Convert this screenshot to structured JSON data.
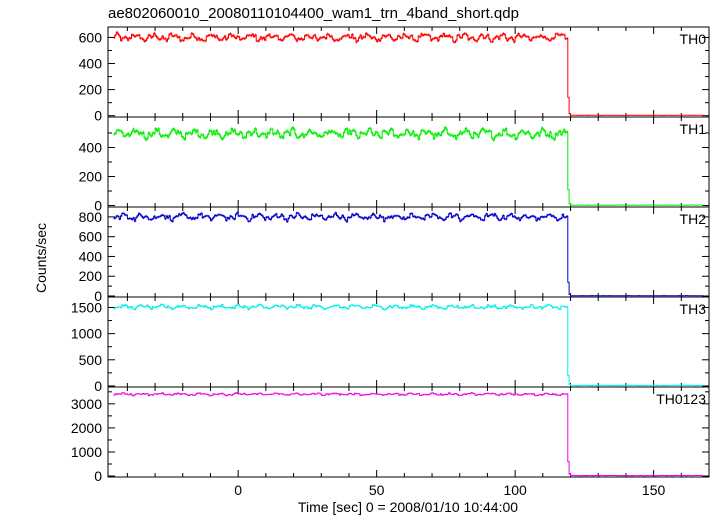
{
  "chart_data": {
    "type": "line",
    "title": "ae802060010_20080110104400_wam1_trn_4band_short.qdp",
    "xlabel": "Time [sec] 0 = 2008/01/10 10:44:00",
    "ylabel": "Counts/sec",
    "xlim": [
      -47,
      170
    ],
    "xticks": [
      0,
      50,
      100,
      150
    ],
    "xtick_labels": [
      "0",
      "50",
      "100",
      "150"
    ],
    "step_time": 119,
    "grid": false,
    "panels": [
      {
        "name": "TH0",
        "color": "#ff0000",
        "ylim": [
          -10,
          680
        ],
        "yticks": [
          0,
          200,
          400,
          600
        ],
        "ytick_labels": [
          "0",
          "200",
          "400",
          "600"
        ],
        "pre_level": 600,
        "noise": 30,
        "post_level": 3,
        "step_values": [
          140,
          15
        ]
      },
      {
        "name": "TH1",
        "color": "#00ee00",
        "ylim": [
          -10,
          610
        ],
        "yticks": [
          0,
          200,
          400
        ],
        "ytick_labels": [
          "0",
          "200",
          "400"
        ],
        "pre_level": 495,
        "noise": 32,
        "post_level": 3,
        "step_values": [
          110,
          12
        ]
      },
      {
        "name": "TH2",
        "color": "#0000cc",
        "ylim": [
          -10,
          900
        ],
        "yticks": [
          0,
          200,
          400,
          600,
          800
        ],
        "ytick_labels": [
          "0",
          "200",
          "400",
          "600",
          "800"
        ],
        "pre_level": 800,
        "noise": 35,
        "post_level": 3,
        "step_values": [
          140,
          15
        ]
      },
      {
        "name": "TH3",
        "color": "#00eeee",
        "ylim": [
          -20,
          1700
        ],
        "yticks": [
          0,
          500,
          1000,
          1500
        ],
        "ytick_labels": [
          "0",
          "500",
          "1000",
          "1500"
        ],
        "pre_level": 1510,
        "noise": 40,
        "post_level": 10,
        "step_values": [
          200,
          30
        ]
      },
      {
        "name": "TH0123",
        "color": "#ee00ee",
        "ylim": [
          -40,
          3700
        ],
        "yticks": [
          0,
          1000,
          2000,
          3000
        ],
        "ytick_labels": [
          "0",
          "1000",
          "2000",
          "3000"
        ],
        "pre_level": 3400,
        "noise": 55,
        "post_level": 20,
        "step_values": [
          600,
          80
        ]
      }
    ]
  }
}
